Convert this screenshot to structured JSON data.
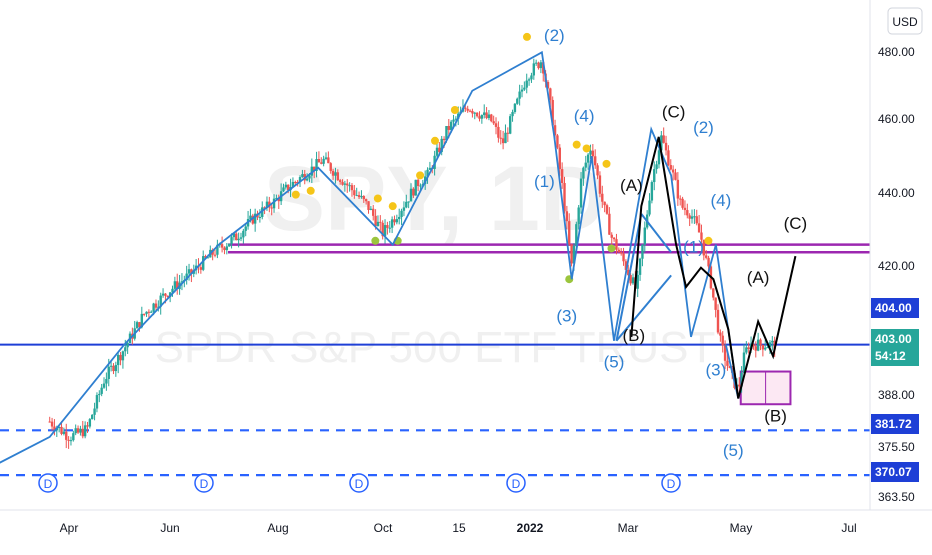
{
  "chart_data": {
    "type": "candlestick",
    "title": "",
    "watermark": {
      "symbol": "SPY, 1D",
      "name": "SPDR S&P 500 ETF TRUST"
    },
    "currency_label": "USD",
    "colors": {
      "up": "#26a69a",
      "down": "#ef5350",
      "wave": "#2f7fd0",
      "proj": "#000000",
      "zone": "#9c27b0",
      "dashed": "#2962ff",
      "price_bg": "#26a69a",
      "level_bg": "#1e3fd6"
    },
    "y_axis": {
      "range": [
        361.0,
        491.0
      ],
      "ticks": [
        "480.00",
        "460.00",
        "440.00",
        "420.00",
        "403.00",
        "388.00",
        "375.50",
        "363.50"
      ]
    },
    "x_axis": {
      "ticks": [
        "Apr",
        "Jun",
        "Aug",
        "Oct",
        "15",
        "2022",
        "Mar",
        "May",
        "Jul"
      ]
    },
    "price_labels": [
      {
        "text": "404.00",
        "style": "level"
      },
      {
        "text": "403.00",
        "style": "last"
      },
      {
        "text": "54:12",
        "style": "last"
      },
      {
        "text": "381.72",
        "style": "level"
      },
      {
        "text": "370.07",
        "style": "level"
      }
    ],
    "horizontal_levels": [
      {
        "value": 430.0,
        "kind": "zone"
      },
      {
        "value": 428.0,
        "kind": "zone"
      },
      {
        "value": 404.0,
        "kind": "solid"
      },
      {
        "value": 381.72,
        "kind": "dashed"
      },
      {
        "value": 370.07,
        "kind": "dashed"
      }
    ],
    "projection_box": {
      "x_start": 278,
      "x_end": 298,
      "top": 397.0,
      "bottom": 388.5
    },
    "dividend_markers": [
      {
        "x": 15,
        "label": "D"
      },
      {
        "x": 73,
        "label": "D"
      },
      {
        "x": 129,
        "label": "D"
      },
      {
        "x": 186,
        "label": "D"
      },
      {
        "x": 240,
        "label": "D"
      }
    ],
    "dots": [
      {
        "x": 99,
        "y": 443,
        "color": "#f5c518"
      },
      {
        "x": 105,
        "y": 444,
        "color": "#f5c518"
      },
      {
        "x": 132,
        "y": 442,
        "color": "#f5c518"
      },
      {
        "x": 138,
        "y": 440,
        "color": "#f5c518"
      },
      {
        "x": 131,
        "y": 431,
        "color": "#9bc53d"
      },
      {
        "x": 140,
        "y": 431,
        "color": "#9bc53d"
      },
      {
        "x": 149,
        "y": 448,
        "color": "#f5c518"
      },
      {
        "x": 155,
        "y": 457,
        "color": "#f5c518"
      },
      {
        "x": 163,
        "y": 465,
        "color": "#f5c518"
      },
      {
        "x": 192,
        "y": 484,
        "color": "#f5c518"
      },
      {
        "x": 212,
        "y": 456,
        "color": "#f5c518"
      },
      {
        "x": 216,
        "y": 455,
        "color": "#f5c518"
      },
      {
        "x": 224,
        "y": 451,
        "color": "#f5c518"
      },
      {
        "x": 209,
        "y": 421,
        "color": "#9bc53d"
      },
      {
        "x": 226,
        "y": 429,
        "color": "#9bc53d"
      },
      {
        "x": 265,
        "y": 431,
        "color": "#f5c518"
      }
    ],
    "wave_count": {
      "points": [
        [
          -30,
          370
        ],
        [
          0,
          380
        ],
        [
          30,
          404
        ],
        [
          68,
          430
        ],
        [
          108,
          450
        ],
        [
          138,
          430
        ],
        [
          170,
          470
        ],
        [
          198,
          480
        ],
        [
          203,
          458
        ],
        [
          210,
          421
        ],
        [
          218,
          453
        ],
        [
          227,
          405
        ],
        [
          242,
          460
        ],
        [
          250,
          448
        ],
        [
          258,
          406
        ],
        [
          268,
          430
        ],
        [
          277,
          390
        ],
        [
          272,
          404
        ]
      ],
      "triangle": [
        [
          [
            228,
            405
          ],
          [
            238,
            438
          ]
        ],
        [
          [
            238,
            438
          ],
          [
            250,
            428
          ]
        ],
        [
          [
            228,
            405
          ],
          [
            250,
            422
          ]
        ]
      ],
      "labels": [
        {
          "text": "(2)",
          "x": 203,
          "y": 483
        },
        {
          "text": "(4)",
          "x": 215,
          "y": 462
        },
        {
          "text": "(1)",
          "x": 199,
          "y": 445
        },
        {
          "text": "(3)",
          "x": 208,
          "y": 410
        },
        {
          "text": "(5)",
          "x": 227,
          "y": 398
        },
        {
          "text": "(2)",
          "x": 263,
          "y": 459
        },
        {
          "text": "(4)",
          "x": 270,
          "y": 440
        },
        {
          "text": "(1)",
          "x": 259,
          "y": 428
        },
        {
          "text": "(3)",
          "x": 268,
          "y": 396
        },
        {
          "text": "(5)",
          "x": 275,
          "y": 375
        }
      ]
    },
    "projection": {
      "path": [
        [
          234,
          406
        ],
        [
          238,
          440
        ],
        [
          245,
          458
        ],
        [
          252,
          430
        ],
        [
          256,
          419
        ],
        [
          262,
          424
        ],
        [
          267,
          421
        ],
        [
          273,
          408
        ],
        [
          277,
          390
        ],
        [
          285,
          410
        ],
        [
          291,
          401
        ],
        [
          300,
          427
        ]
      ],
      "labels": [
        {
          "text": "(A)",
          "x": 234,
          "y": 444
        },
        {
          "text": "(B)",
          "x": 235,
          "y": 405
        },
        {
          "text": "(C)",
          "x": 251,
          "y": 463
        },
        {
          "text": "(A)",
          "x": 285,
          "y": 420
        },
        {
          "text": "(B)",
          "x": 292,
          "y": 384
        },
        {
          "text": "(C)",
          "x": 300,
          "y": 434
        }
      ]
    },
    "series_trend": {
      "start": 0,
      "end": 292,
      "anchors": [
        [
          0,
          384
        ],
        [
          8,
          380
        ],
        [
          15,
          382
        ],
        [
          22,
          395
        ],
        [
          30,
          403
        ],
        [
          38,
          412
        ],
        [
          48,
          418
        ],
        [
          56,
          422
        ],
        [
          66,
          428
        ],
        [
          75,
          432
        ],
        [
          82,
          437
        ],
        [
          90,
          441
        ],
        [
          96,
          445
        ],
        [
          110,
          452
        ],
        [
          122,
          444
        ],
        [
          128,
          440
        ],
        [
          134,
          433
        ],
        [
          142,
          440
        ],
        [
          148,
          446
        ],
        [
          152,
          448
        ],
        [
          160,
          460
        ],
        [
          168,
          466
        ],
        [
          178,
          462
        ],
        [
          182,
          456
        ],
        [
          192,
          474
        ],
        [
          198,
          478
        ],
        [
          202,
          464
        ],
        [
          206,
          446
        ],
        [
          210,
          424
        ],
        [
          214,
          448
        ],
        [
          218,
          456
        ],
        [
          222,
          442
        ],
        [
          226,
          432
        ],
        [
          232,
          424
        ],
        [
          236,
          418
        ],
        [
          242,
          446
        ],
        [
          246,
          458
        ],
        [
          250,
          450
        ],
        [
          254,
          440
        ],
        [
          258,
          438
        ],
        [
          262,
          432
        ],
        [
          266,
          420
        ],
        [
          270,
          404
        ],
        [
          274,
          396
        ],
        [
          277,
          392
        ],
        [
          279,
          400
        ],
        [
          281,
          404
        ]
      ]
    }
  }
}
